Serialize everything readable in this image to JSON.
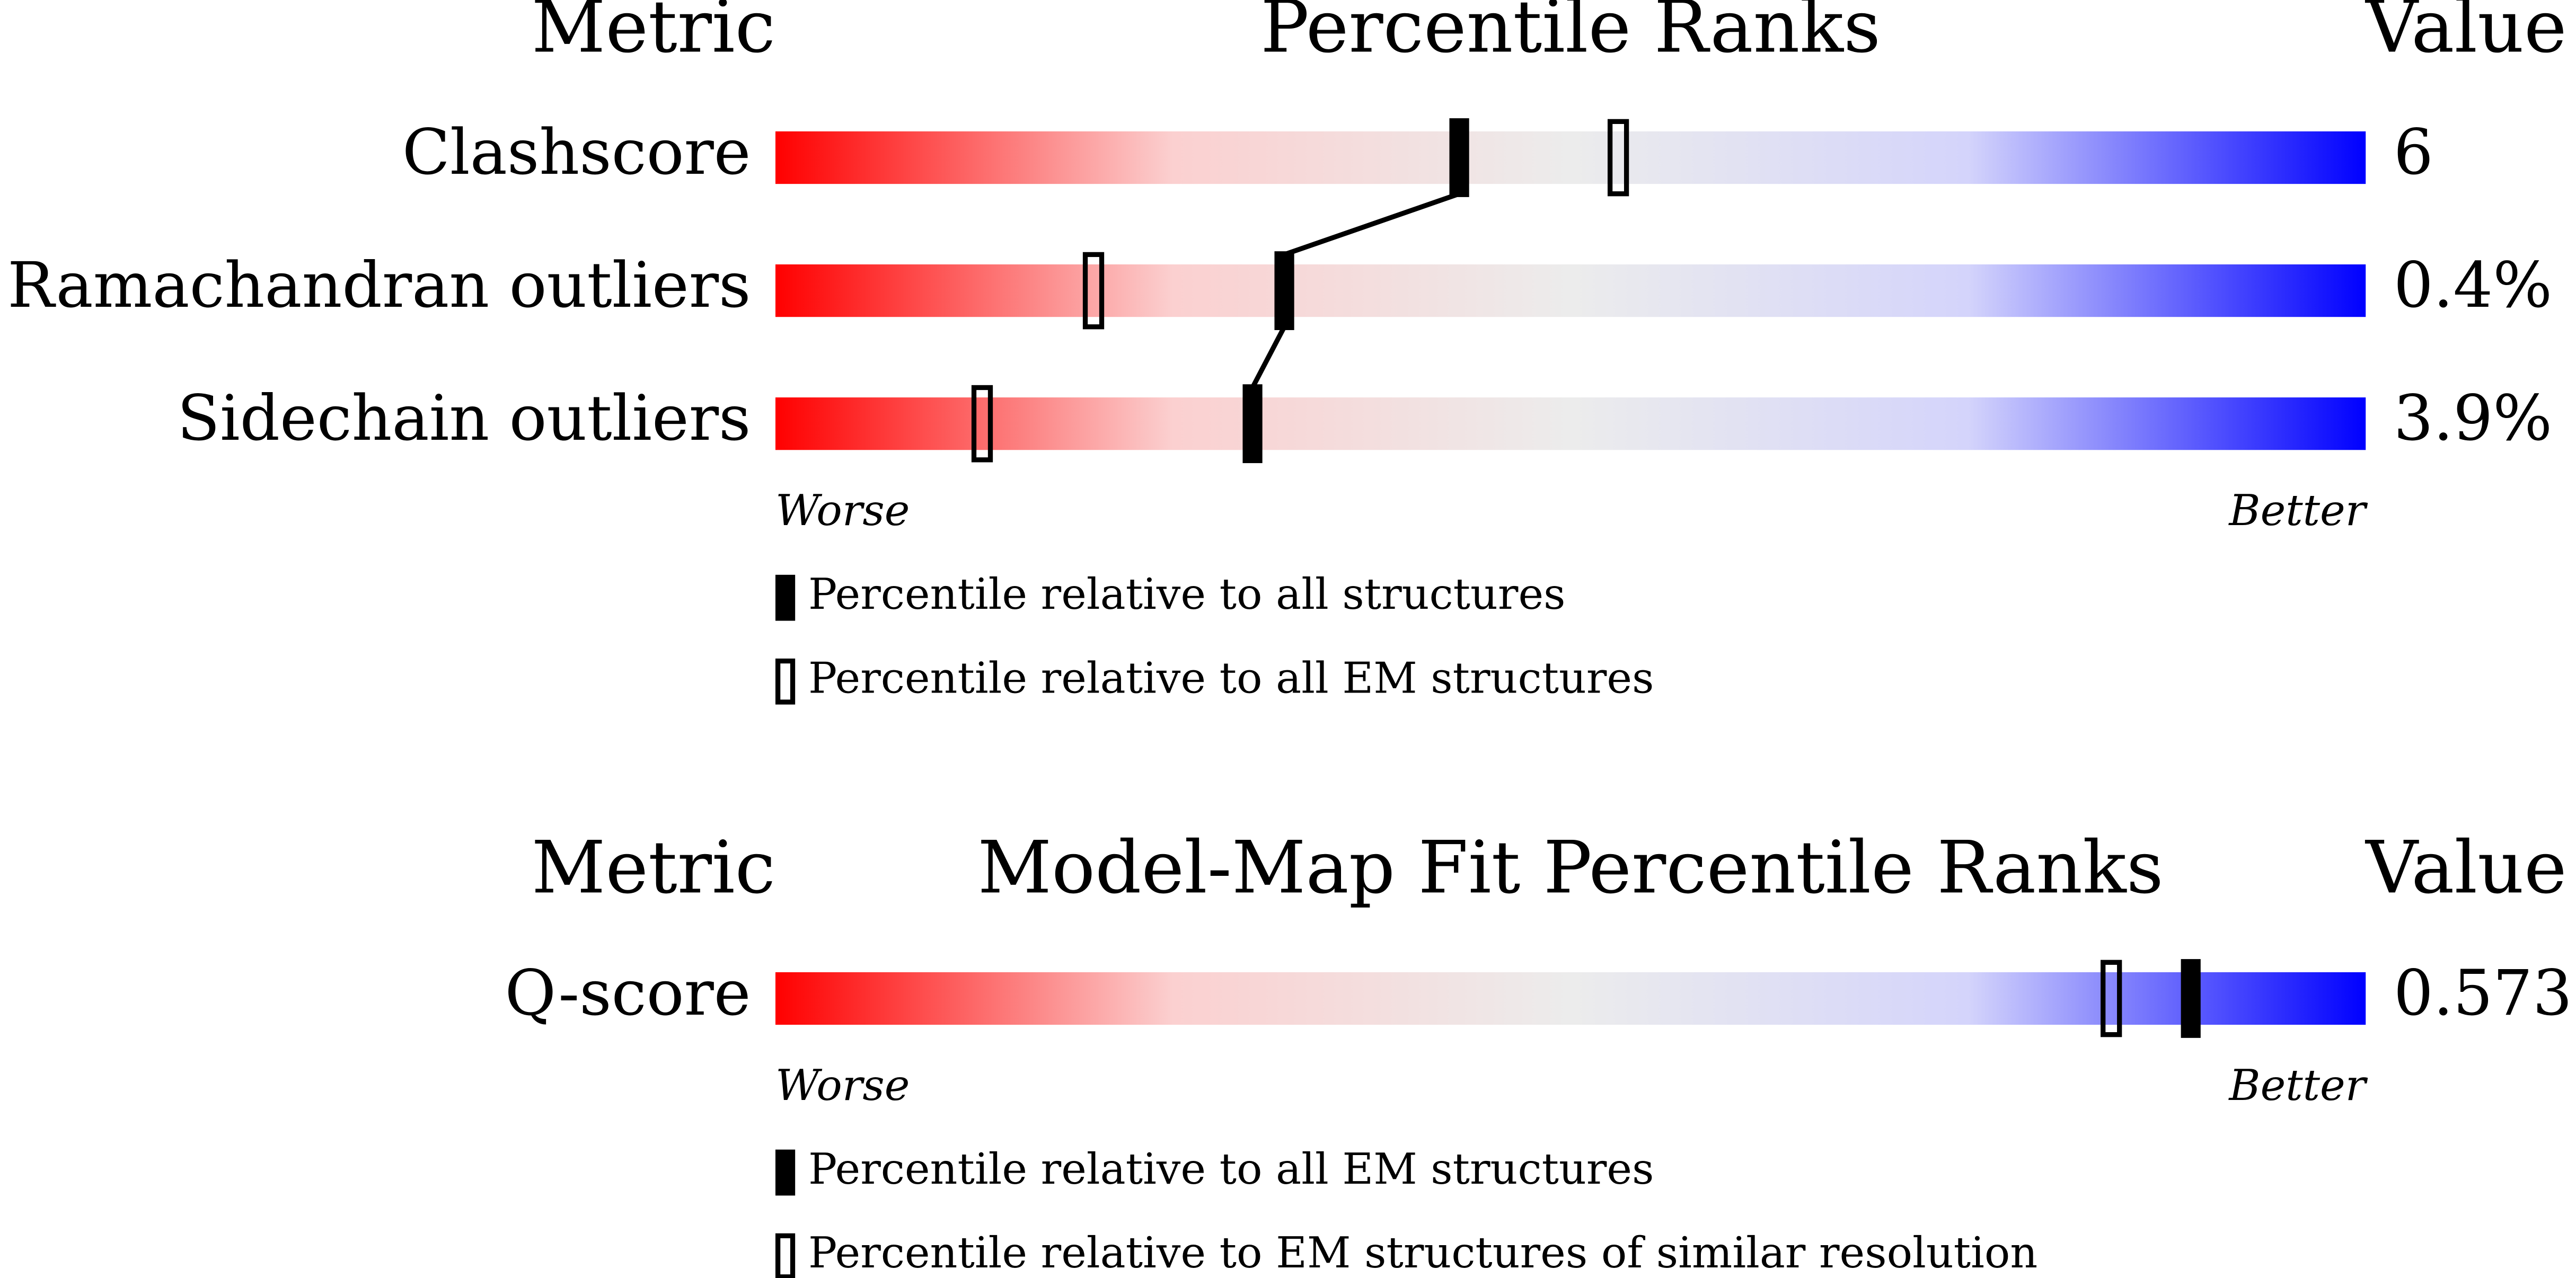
{
  "chart_data": [
    {
      "type": "slider",
      "header": {
        "metric": "Metric",
        "title": "Percentile Ranks",
        "value": "Value"
      },
      "categories": [
        "Clashscore",
        "Ramachandran outliers",
        "Sidechain outliers"
      ],
      "value_labels": [
        "6",
        "0.4%",
        "3.9%"
      ],
      "xlim": [
        0,
        100
      ],
      "ends": [
        "Worse",
        "Better"
      ],
      "colors": [
        "#ff0000",
        "#fbd0d0",
        "#ececec",
        "#d4d4fb",
        "#0000ff"
      ],
      "connect": true,
      "series": [
        {
          "name": "Percentile relative to all structures",
          "style": "filled",
          "values": [
            43,
            32,
            30
          ]
        },
        {
          "name": "Percentile relative to all EM structures",
          "style": "open",
          "values": [
            53,
            20,
            13
          ]
        }
      ]
    },
    {
      "type": "slider",
      "header": {
        "metric": "Metric",
        "title": "Model-Map Fit Percentile Ranks",
        "value": "Value"
      },
      "categories": [
        "Q-score"
      ],
      "value_labels": [
        "0.573"
      ],
      "xlim": [
        0,
        100
      ],
      "ends": [
        "Worse",
        "Better"
      ],
      "colors": [
        "#ff0000",
        "#fbd0d0",
        "#ececec",
        "#d4d4fb",
        "#0000ff"
      ],
      "connect": true,
      "series": [
        {
          "name": "Percentile relative to all EM structures",
          "style": "filled",
          "values": [
            89
          ]
        },
        {
          "name": "Percentile relative to EM structures of similar resolution",
          "style": "open",
          "values": [
            84
          ]
        }
      ]
    }
  ]
}
